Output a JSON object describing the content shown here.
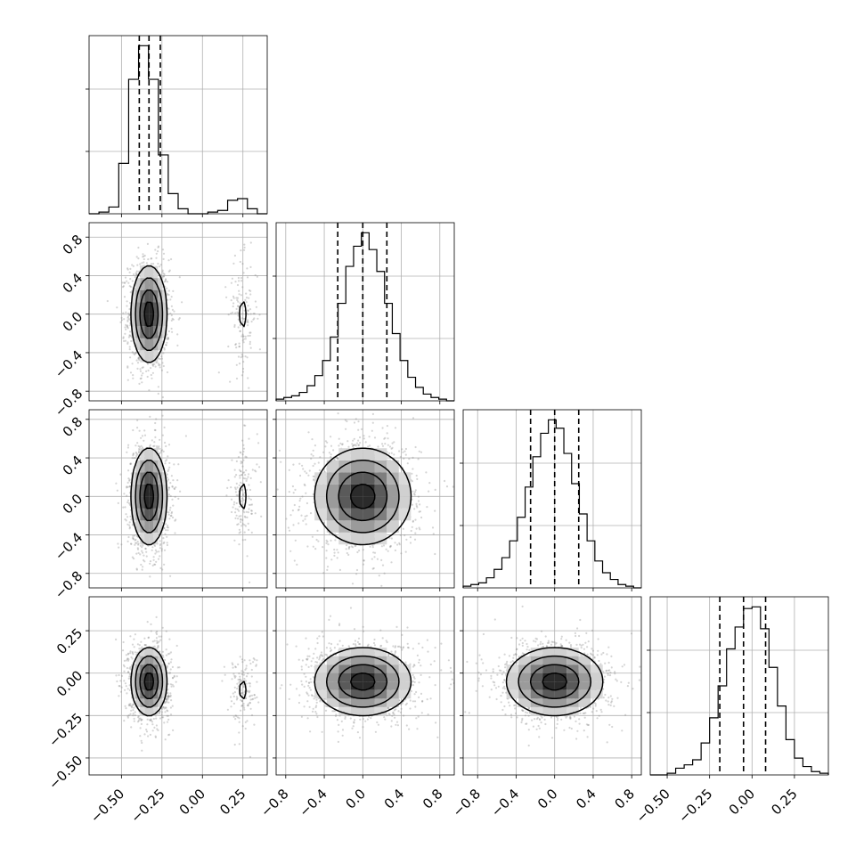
{
  "chart_data": {
    "type": "corner",
    "parameters": [
      {
        "ticks": [
          -0.5,
          -0.25,
          0.0,
          0.25
        ],
        "tick_labels": [
          "−0.50",
          "−0.25",
          "0.00",
          "0.25"
        ]
      },
      {
        "ticks": [
          -0.8,
          -0.4,
          0.0,
          0.4,
          0.8
        ],
        "tick_labels": [
          "−0.8",
          "−0.4",
          "0.0",
          "0.4",
          "0.8"
        ]
      },
      {
        "ticks": [
          -0.8,
          -0.4,
          0.0,
          0.4,
          0.8
        ],
        "tick_labels": [
          "−0.8",
          "−0.4",
          "0.0",
          "0.4",
          "0.8"
        ]
      },
      {
        "ticks": [
          -0.5,
          -0.25,
          0.0,
          0.25
        ],
        "tick_labels": [
          "−0.50",
          "−0.25",
          "0.00",
          "0.25"
        ]
      }
    ],
    "ranges": [
      [
        -0.7,
        0.4
      ],
      [
        -0.9,
        0.95
      ],
      [
        -0.95,
        0.9
      ],
      [
        -0.6,
        0.45
      ]
    ],
    "marginals": [
      {
        "counts": [
          0,
          1,
          4,
          30,
          80,
          100,
          80,
          35,
          12,
          3,
          0,
          0,
          1,
          2,
          8,
          9,
          3,
          0
        ],
        "quantiles": [
          -0.39,
          -0.33,
          -0.26
        ]
      },
      {
        "counts": [
          1,
          2,
          3,
          5,
          9,
          15,
          24,
          38,
          58,
          80,
          92,
          100,
          90,
          77,
          58,
          40,
          24,
          14,
          8,
          4,
          2,
          1,
          0
        ],
        "quantiles": [
          -0.26,
          0.0,
          0.25
        ]
      },
      {
        "counts": [
          1,
          2,
          3,
          6,
          11,
          18,
          28,
          42,
          60,
          78,
          92,
          100,
          95,
          80,
          62,
          44,
          28,
          16,
          9,
          5,
          2,
          1,
          0
        ],
        "quantiles": [
          -0.25,
          0.0,
          0.25
        ]
      },
      {
        "counts": [
          0,
          0,
          1,
          4,
          6,
          9,
          19,
          34,
          53,
          75,
          88,
          99,
          100,
          87,
          64,
          41,
          21,
          10,
          5,
          2,
          1
        ],
        "quantiles": [
          -0.19,
          -0.05,
          0.08
        ]
      }
    ],
    "joint": [
      {
        "pair": [
          0,
          1
        ],
        "components": [
          {
            "x": -0.33,
            "y": 0.0,
            "sx": 0.055,
            "sy": 0.25,
            "weight": 0.9
          },
          {
            "x": 0.25,
            "y": 0.0,
            "sx": 0.04,
            "sy": 0.25,
            "weight": 0.1
          }
        ]
      },
      {
        "pair": [
          0,
          2
        ],
        "components": [
          {
            "x": -0.33,
            "y": 0.0,
            "sx": 0.055,
            "sy": 0.25,
            "weight": 0.9
          },
          {
            "x": 0.25,
            "y": 0.0,
            "sx": 0.04,
            "sy": 0.25,
            "weight": 0.1
          }
        ]
      },
      {
        "pair": [
          1,
          2
        ],
        "components": [
          {
            "x": 0.0,
            "y": 0.0,
            "sx": 0.25,
            "sy": 0.25,
            "weight": 1.0
          }
        ]
      },
      {
        "pair": [
          0,
          3
        ],
        "components": [
          {
            "x": -0.33,
            "y": -0.05,
            "sx": 0.055,
            "sy": 0.1,
            "weight": 0.9
          },
          {
            "x": 0.25,
            "y": -0.1,
            "sx": 0.04,
            "sy": 0.1,
            "weight": 0.1
          }
        ]
      },
      {
        "pair": [
          1,
          3
        ],
        "components": [
          {
            "x": 0.0,
            "y": -0.05,
            "sx": 0.25,
            "sy": 0.1,
            "weight": 1.0
          }
        ]
      },
      {
        "pair": [
          2,
          3
        ],
        "components": [
          {
            "x": 0.0,
            "y": -0.05,
            "sx": 0.25,
            "sy": 0.1,
            "weight": 1.0
          }
        ]
      }
    ],
    "contour_sigma_levels": [
      0.5,
      1.0,
      1.5,
      2.0
    ],
    "grid": true,
    "legend": "none",
    "title": "",
    "xlabel": "",
    "ylabel": ""
  }
}
